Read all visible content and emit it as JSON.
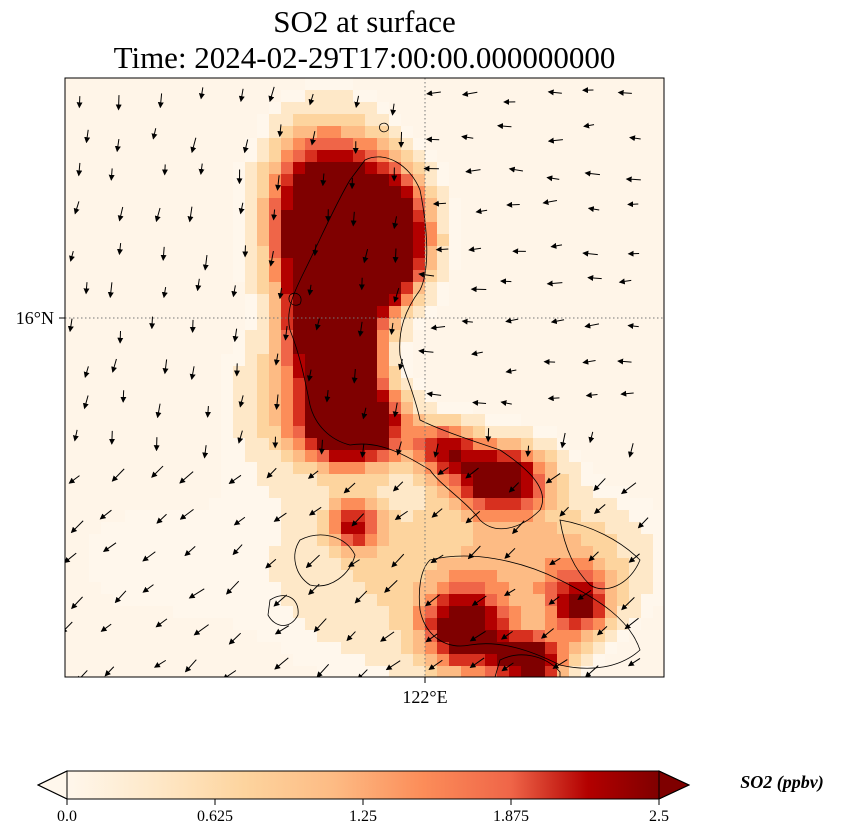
{
  "chart_data": {
    "type": "heatmap",
    "title_line1": "SO2 at surface",
    "title_line2": "Time: 2024-02-29T17:00:00.000000000",
    "x_tick_labels": [
      "122°E"
    ],
    "y_tick_labels": [
      "16°N"
    ],
    "colorbar": {
      "label": "SO2 (ppbv)",
      "range": [
        0.0,
        2.5
      ],
      "ticks": [
        "0.0",
        "0.625",
        "1.25",
        "1.875",
        "2.5"
      ],
      "colormap": "OrRd",
      "extend": "both"
    },
    "gridlines": "dotted",
    "overlays": [
      "coastlines",
      "wind vectors"
    ]
  },
  "colors": {
    "low": "#fff7ec",
    "mid": "#fc8d59",
    "high": "#7f0000"
  }
}
